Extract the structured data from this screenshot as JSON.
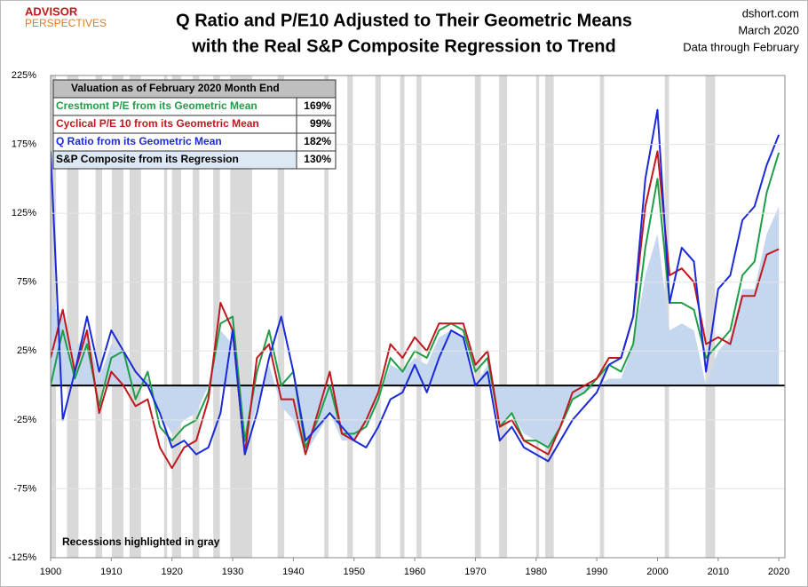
{
  "chart_data": {
    "type": "line",
    "title": "Q Ratio and P/E10 Adjusted to Their Geometric Means",
    "subtitle": "with the Real S&P Composite Regression to Trend",
    "logo": [
      "ADVISOR",
      "PERSPECTIVES"
    ],
    "source": "dshort.com",
    "date": "March 2020",
    "data_note": "Data through February",
    "annotation": "Recessions highlighted in gray",
    "x": [
      1900,
      1902,
      1904,
      1906,
      1908,
      1910,
      1912,
      1914,
      1916,
      1918,
      1920,
      1922,
      1924,
      1926,
      1928,
      1930,
      1932,
      1934,
      1936,
      1938,
      1940,
      1942,
      1944,
      1946,
      1948,
      1950,
      1952,
      1954,
      1956,
      1958,
      1960,
      1962,
      1964,
      1966,
      1968,
      1970,
      1972,
      1974,
      1976,
      1978,
      1980,
      1982,
      1984,
      1986,
      1988,
      1990,
      1992,
      1994,
      1996,
      1998,
      2000,
      2002,
      2004,
      2006,
      2008,
      2010,
      2012,
      2014,
      2016,
      2018,
      2020
    ],
    "series": [
      {
        "name": "Crestmont P/E from its Geometric Mean",
        "color": "#1f9e48",
        "style": "line",
        "values": [
          0,
          40,
          5,
          30,
          -15,
          20,
          25,
          -10,
          10,
          -30,
          -40,
          -30,
          -25,
          -5,
          45,
          50,
          -40,
          10,
          40,
          0,
          10,
          -45,
          -25,
          0,
          -35,
          -35,
          -30,
          -10,
          20,
          10,
          25,
          20,
          40,
          45,
          40,
          10,
          20,
          -30,
          -20,
          -40,
          -40,
          -45,
          -30,
          -10,
          -5,
          5,
          15,
          10,
          30,
          100,
          150,
          60,
          60,
          55,
          20,
          30,
          40,
          80,
          90,
          140,
          169
        ]
      },
      {
        "name": "Cyclical P/E 10 from its Geometric Mean",
        "color": "#c0181f",
        "style": "line",
        "values": [
          20,
          55,
          10,
          40,
          -20,
          10,
          0,
          -15,
          -10,
          -45,
          -60,
          -45,
          -40,
          -10,
          60,
          40,
          -50,
          20,
          30,
          -10,
          -10,
          -50,
          -20,
          10,
          -35,
          -40,
          -25,
          -5,
          30,
          20,
          35,
          25,
          45,
          45,
          45,
          15,
          25,
          -30,
          -25,
          -40,
          -45,
          -50,
          -30,
          -5,
          0,
          5,
          20,
          20,
          50,
          130,
          170,
          80,
          85,
          75,
          30,
          35,
          30,
          65,
          65,
          95,
          99
        ]
      },
      {
        "name": "Q Ratio from its Geometric Mean",
        "color": "#1a2ad8",
        "style": "line",
        "values": [
          170,
          -25,
          10,
          50,
          10,
          40,
          25,
          10,
          0,
          -20,
          -45,
          -40,
          -50,
          -45,
          -20,
          40,
          -50,
          -20,
          20,
          50,
          10,
          -40,
          -30,
          -20,
          -30,
          -40,
          -45,
          -30,
          -10,
          -5,
          15,
          -5,
          20,
          40,
          35,
          0,
          10,
          -40,
          -30,
          -45,
          -50,
          -55,
          -40,
          -25,
          -15,
          -5,
          15,
          20,
          50,
          150,
          200,
          60,
          100,
          90,
          10,
          70,
          80,
          120,
          130,
          160,
          182
        ]
      },
      {
        "name": "S&P Composite from its Regression",
        "color": "#c5d7ef",
        "style": "area",
        "values": [
          60,
          50,
          25,
          40,
          5,
          30,
          25,
          5,
          5,
          -20,
          -35,
          -25,
          -20,
          0,
          40,
          30,
          -45,
          -15,
          15,
          -15,
          -25,
          -50,
          -35,
          -20,
          -40,
          -40,
          -30,
          -10,
          15,
          10,
          20,
          15,
          35,
          40,
          35,
          0,
          15,
          -30,
          -20,
          -35,
          -40,
          -45,
          -30,
          -10,
          -5,
          0,
          5,
          5,
          30,
          80,
          110,
          40,
          45,
          40,
          0,
          25,
          35,
          70,
          70,
          110,
          130
        ]
      }
    ],
    "table": {
      "title": "Valuation as of February 2020 Month End",
      "values": [
        169,
        99,
        182,
        130
      ],
      "value_labels": [
        "169%",
        "99%",
        "182%",
        "130%"
      ]
    },
    "recessions": [
      [
        1899.5,
        1900.9
      ],
      [
        1902.7,
        1904.6
      ],
      [
        1907.4,
        1908.5
      ],
      [
        1910.1,
        1912.0
      ],
      [
        1913.0,
        1914.9
      ],
      [
        1918.7,
        1919.2
      ],
      [
        1920.0,
        1921.5
      ],
      [
        1923.4,
        1924.5
      ],
      [
        1926.8,
        1927.9
      ],
      [
        1929.6,
        1933.2
      ],
      [
        1937.4,
        1938.5
      ],
      [
        1945.1,
        1945.8
      ],
      [
        1948.9,
        1949.8
      ],
      [
        1953.5,
        1954.4
      ],
      [
        1957.6,
        1958.3
      ],
      [
        1960.3,
        1961.1
      ],
      [
        1969.9,
        1970.9
      ],
      [
        1973.9,
        1975.2
      ],
      [
        1980.0,
        1980.5
      ],
      [
        1981.5,
        1982.9
      ],
      [
        1990.5,
        1991.2
      ],
      [
        2001.2,
        2001.9
      ],
      [
        2007.9,
        2009.5
      ]
    ],
    "xlim": [
      1900,
      2021
    ],
    "xticks": [
      1900,
      1910,
      1920,
      1930,
      1940,
      1950,
      1960,
      1970,
      1980,
      1990,
      2000,
      2010,
      2020
    ],
    "ylim": [
      -125,
      225
    ],
    "yticks": [
      {
        "value": 225,
        "label": "225%"
      },
      {
        "value": 175,
        "label": "175%"
      },
      {
        "value": 125,
        "label": "125%"
      },
      {
        "value": 75,
        "label": "75%"
      },
      {
        "value": 25,
        "label": "25%"
      },
      {
        "value": -25,
        "label": "-25%"
      },
      {
        "value": -75,
        "label": "-75%"
      },
      {
        "value": -125,
        "label": "-125%"
      }
    ],
    "grid": true,
    "recession_color": "#d9d9d9"
  }
}
